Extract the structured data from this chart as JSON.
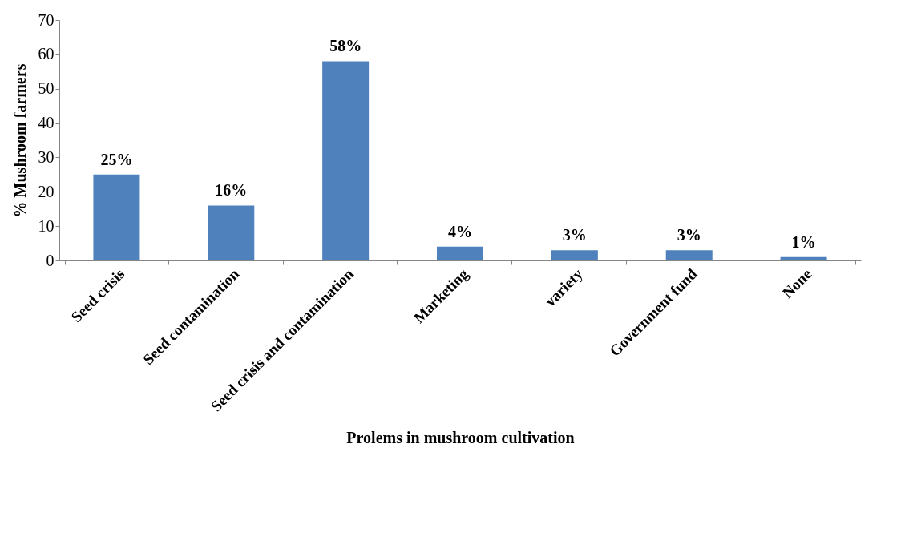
{
  "chart_data": {
    "type": "bar",
    "xlabel": "Prolems in mushroom cultivation",
    "ylabel": "% Mushroom farmers",
    "categories": [
      "Seed crisis",
      "Seed contamination",
      "Seed crisis and contamination",
      "Marketing",
      "variety",
      "Government fund",
      "None"
    ],
    "values": [
      25,
      16,
      58,
      4,
      3,
      3,
      1
    ],
    "value_labels": [
      "25%",
      "16%",
      "58%",
      "4%",
      "3%",
      "3%",
      "1%"
    ],
    "color": "#4f81bd",
    "ylim": [
      0,
      70
    ],
    "yticks": [
      0,
      10,
      20,
      30,
      40,
      50,
      60,
      70
    ],
    "grid": false
  }
}
